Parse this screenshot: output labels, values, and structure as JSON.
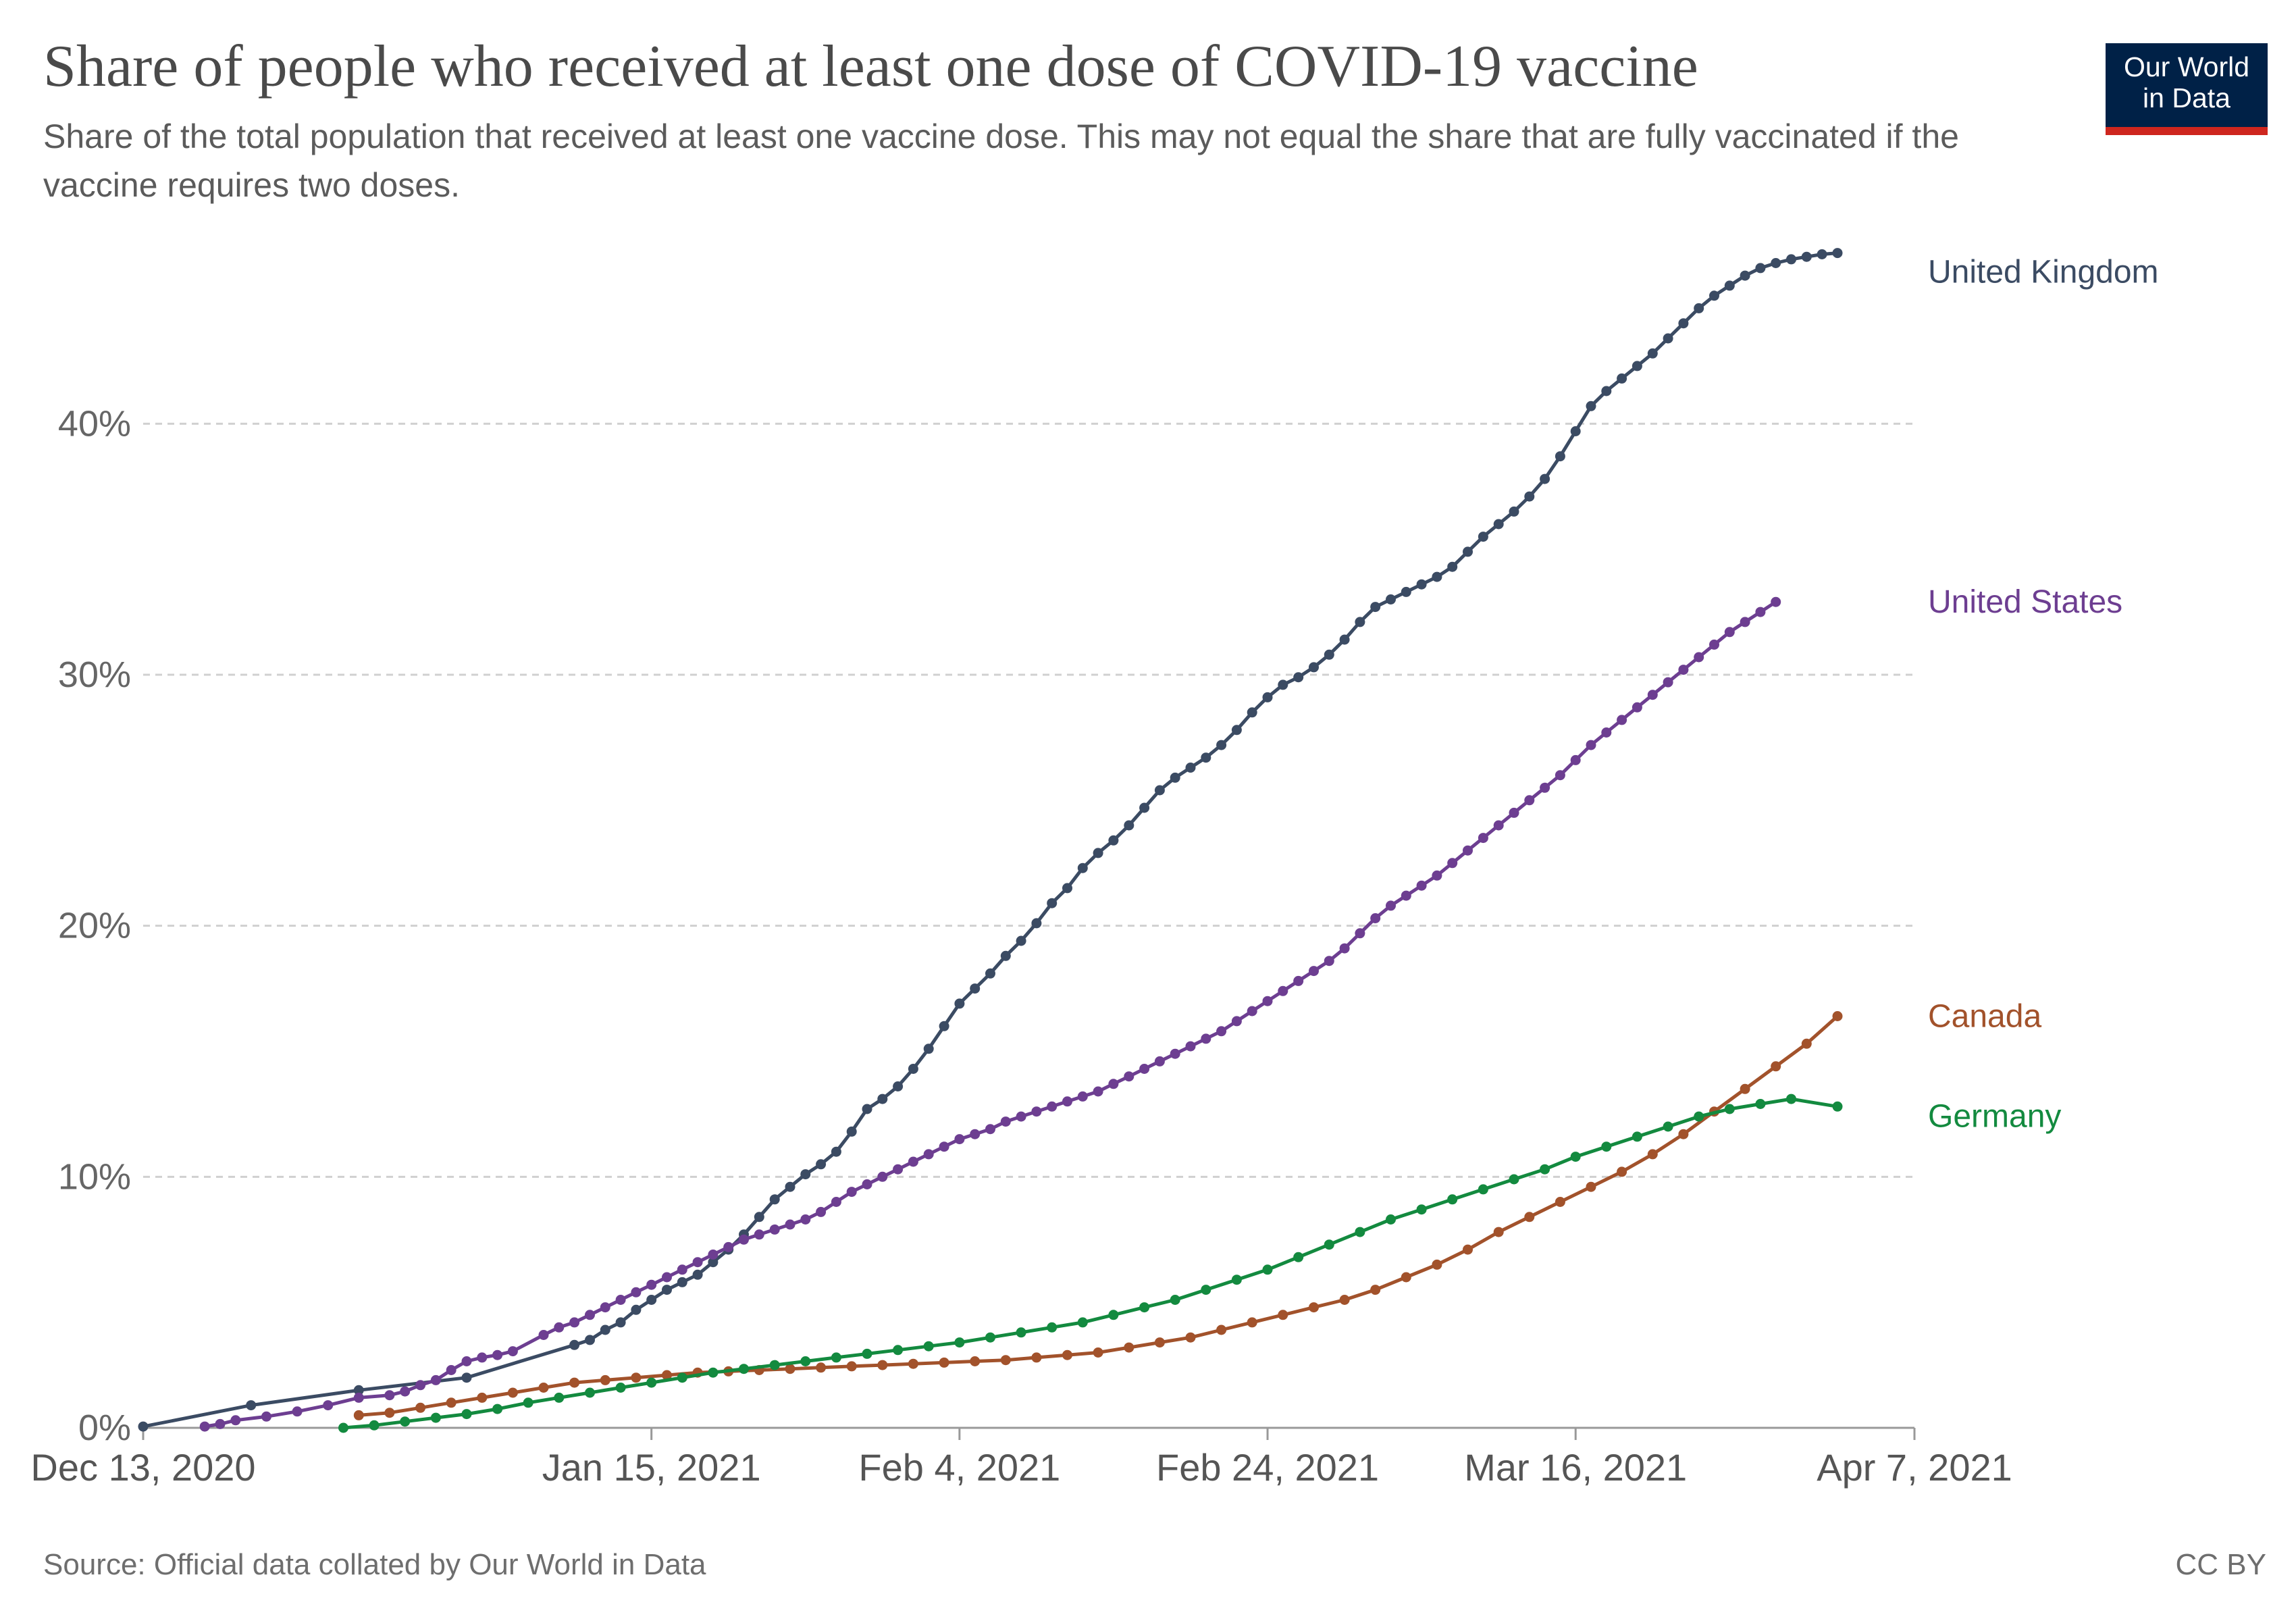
{
  "header": {
    "title": "Share of people who received at least one dose of COVID-19 vaccine",
    "subtitle": "Share of the total population that received at least one vaccine dose. This may not equal the share that are fully vaccinated if the vaccine requires two doses."
  },
  "logo": {
    "line1": "Our World",
    "line2": "in Data",
    "bg_color": "#002147",
    "accent_color": "#ce261e"
  },
  "footer": {
    "source": "Source: Official data collated by Our World in Data",
    "license": "CC BY"
  },
  "chart_data": {
    "type": "line",
    "title": "Share of people who received at least one dose of COVID-19 vaccine",
    "x_start": "Dec 13, 2020",
    "x_end": "Apr 7, 2021",
    "x_ticks": [
      {
        "label": "Dec 13, 2020",
        "day": 0
      },
      {
        "label": "Jan 15, 2021",
        "day": 33
      },
      {
        "label": "Feb 4, 2021",
        "day": 53
      },
      {
        "label": "Feb 24, 2021",
        "day": 73
      },
      {
        "label": "Mar 16, 2021",
        "day": 93
      },
      {
        "label": "Apr 7, 2021",
        "day": 115
      }
    ],
    "y_ticks": [
      {
        "label": "0%",
        "value": 0
      },
      {
        "label": "10%",
        "value": 10
      },
      {
        "label": "20%",
        "value": 20
      },
      {
        "label": "30%",
        "value": 30
      },
      {
        "label": "40%",
        "value": 40
      }
    ],
    "ylim": [
      0,
      48
    ],
    "grid": "horizontal dashed",
    "series": [
      {
        "name": "United Kingdom",
        "color": "#3b4b63",
        "points": [
          [
            0,
            0.05
          ],
          [
            7,
            0.9
          ],
          [
            14,
            1.5
          ],
          [
            21,
            2.0
          ],
          [
            28,
            3.3
          ],
          [
            29,
            3.5
          ],
          [
            30,
            3.9
          ],
          [
            31,
            4.2
          ],
          [
            32,
            4.7
          ],
          [
            33,
            5.1
          ],
          [
            34,
            5.5
          ],
          [
            35,
            5.8
          ],
          [
            36,
            6.1
          ],
          [
            37,
            6.6
          ],
          [
            38,
            7.1
          ],
          [
            39,
            7.7
          ],
          [
            40,
            8.4
          ],
          [
            41,
            9.1
          ],
          [
            42,
            9.6
          ],
          [
            43,
            10.1
          ],
          [
            44,
            10.5
          ],
          [
            45,
            11.0
          ],
          [
            46,
            11.8
          ],
          [
            47,
            12.7
          ],
          [
            48,
            13.1
          ],
          [
            49,
            13.6
          ],
          [
            50,
            14.3
          ],
          [
            51,
            15.1
          ],
          [
            52,
            16.0
          ],
          [
            53,
            16.9
          ],
          [
            54,
            17.5
          ],
          [
            55,
            18.1
          ],
          [
            56,
            18.8
          ],
          [
            57,
            19.4
          ],
          [
            58,
            20.1
          ],
          [
            59,
            20.9
          ],
          [
            60,
            21.5
          ],
          [
            61,
            22.3
          ],
          [
            62,
            22.9
          ],
          [
            63,
            23.4
          ],
          [
            64,
            24.0
          ],
          [
            65,
            24.7
          ],
          [
            66,
            25.4
          ],
          [
            67,
            25.9
          ],
          [
            68,
            26.3
          ],
          [
            69,
            26.7
          ],
          [
            70,
            27.2
          ],
          [
            71,
            27.8
          ],
          [
            72,
            28.5
          ],
          [
            73,
            29.1
          ],
          [
            74,
            29.6
          ],
          [
            75,
            29.9
          ],
          [
            76,
            30.3
          ],
          [
            77,
            30.8
          ],
          [
            78,
            31.4
          ],
          [
            79,
            32.1
          ],
          [
            80,
            32.7
          ],
          [
            81,
            33.0
          ],
          [
            82,
            33.3
          ],
          [
            83,
            33.6
          ],
          [
            84,
            33.9
          ],
          [
            85,
            34.3
          ],
          [
            86,
            34.9
          ],
          [
            87,
            35.5
          ],
          [
            88,
            36.0
          ],
          [
            89,
            36.5
          ],
          [
            90,
            37.1
          ],
          [
            91,
            37.8
          ],
          [
            92,
            38.7
          ],
          [
            93,
            39.7
          ],
          [
            94,
            40.7
          ],
          [
            95,
            41.3
          ],
          [
            96,
            41.8
          ],
          [
            97,
            42.3
          ],
          [
            98,
            42.8
          ],
          [
            99,
            43.4
          ],
          [
            100,
            44.0
          ],
          [
            101,
            44.6
          ],
          [
            102,
            45.1
          ],
          [
            103,
            45.5
          ],
          [
            104,
            45.9
          ],
          [
            105,
            46.2
          ],
          [
            106,
            46.4
          ],
          [
            107,
            46.55
          ],
          [
            108,
            46.65
          ],
          [
            109,
            46.75
          ],
          [
            110,
            46.8
          ]
        ]
      },
      {
        "name": "United States",
        "color": "#6d3e91",
        "points": [
          [
            4,
            0.05
          ],
          [
            5,
            0.15
          ],
          [
            6,
            0.3
          ],
          [
            8,
            0.45
          ],
          [
            10,
            0.65
          ],
          [
            12,
            0.9
          ],
          [
            14,
            1.2
          ],
          [
            16,
            1.3
          ],
          [
            17,
            1.45
          ],
          [
            18,
            1.7
          ],
          [
            19,
            1.9
          ],
          [
            20,
            2.3
          ],
          [
            21,
            2.65
          ],
          [
            22,
            2.8
          ],
          [
            23,
            2.9
          ],
          [
            24,
            3.05
          ],
          [
            26,
            3.7
          ],
          [
            27,
            4.0
          ],
          [
            28,
            4.2
          ],
          [
            29,
            4.5
          ],
          [
            30,
            4.8
          ],
          [
            31,
            5.1
          ],
          [
            32,
            5.4
          ],
          [
            33,
            5.7
          ],
          [
            34,
            6.0
          ],
          [
            35,
            6.3
          ],
          [
            36,
            6.6
          ],
          [
            37,
            6.9
          ],
          [
            38,
            7.2
          ],
          [
            39,
            7.5
          ],
          [
            40,
            7.7
          ],
          [
            41,
            7.9
          ],
          [
            42,
            8.1
          ],
          [
            43,
            8.3
          ],
          [
            44,
            8.6
          ],
          [
            45,
            9.0
          ],
          [
            46,
            9.4
          ],
          [
            47,
            9.7
          ],
          [
            48,
            10.0
          ],
          [
            49,
            10.3
          ],
          [
            50,
            10.6
          ],
          [
            51,
            10.9
          ],
          [
            52,
            11.2
          ],
          [
            53,
            11.5
          ],
          [
            54,
            11.7
          ],
          [
            55,
            11.9
          ],
          [
            56,
            12.2
          ],
          [
            57,
            12.4
          ],
          [
            58,
            12.6
          ],
          [
            59,
            12.8
          ],
          [
            60,
            13.0
          ],
          [
            61,
            13.2
          ],
          [
            62,
            13.4
          ],
          [
            63,
            13.7
          ],
          [
            64,
            14.0
          ],
          [
            65,
            14.3
          ],
          [
            66,
            14.6
          ],
          [
            67,
            14.9
          ],
          [
            68,
            15.2
          ],
          [
            69,
            15.5
          ],
          [
            70,
            15.8
          ],
          [
            71,
            16.2
          ],
          [
            72,
            16.6
          ],
          [
            73,
            17.0
          ],
          [
            74,
            17.4
          ],
          [
            75,
            17.8
          ],
          [
            76,
            18.2
          ],
          [
            77,
            18.6
          ],
          [
            78,
            19.1
          ],
          [
            79,
            19.7
          ],
          [
            80,
            20.3
          ],
          [
            81,
            20.8
          ],
          [
            82,
            21.2
          ],
          [
            83,
            21.6
          ],
          [
            84,
            22.0
          ],
          [
            85,
            22.5
          ],
          [
            86,
            23.0
          ],
          [
            87,
            23.5
          ],
          [
            88,
            24.0
          ],
          [
            89,
            24.5
          ],
          [
            90,
            25.0
          ],
          [
            91,
            25.5
          ],
          [
            92,
            26.0
          ],
          [
            93,
            26.6
          ],
          [
            94,
            27.2
          ],
          [
            95,
            27.7
          ],
          [
            96,
            28.2
          ],
          [
            97,
            28.7
          ],
          [
            98,
            29.2
          ],
          [
            99,
            29.7
          ],
          [
            100,
            30.2
          ],
          [
            101,
            30.7
          ],
          [
            102,
            31.2
          ],
          [
            103,
            31.7
          ],
          [
            104,
            32.1
          ],
          [
            105,
            32.5
          ],
          [
            106,
            32.9
          ]
        ]
      },
      {
        "name": "Canada",
        "color": "#a2522b",
        "points": [
          [
            14,
            0.5
          ],
          [
            16,
            0.6
          ],
          [
            18,
            0.8
          ],
          [
            20,
            1.0
          ],
          [
            22,
            1.2
          ],
          [
            24,
            1.4
          ],
          [
            26,
            1.6
          ],
          [
            28,
            1.8
          ],
          [
            30,
            1.9
          ],
          [
            32,
            2.0
          ],
          [
            34,
            2.1
          ],
          [
            36,
            2.2
          ],
          [
            38,
            2.25
          ],
          [
            40,
            2.3
          ],
          [
            42,
            2.35
          ],
          [
            44,
            2.4
          ],
          [
            46,
            2.45
          ],
          [
            48,
            2.5
          ],
          [
            50,
            2.55
          ],
          [
            52,
            2.6
          ],
          [
            54,
            2.65
          ],
          [
            56,
            2.7
          ],
          [
            58,
            2.8
          ],
          [
            60,
            2.9
          ],
          [
            62,
            3.0
          ],
          [
            64,
            3.2
          ],
          [
            66,
            3.4
          ],
          [
            68,
            3.6
          ],
          [
            70,
            3.9
          ],
          [
            72,
            4.2
          ],
          [
            74,
            4.5
          ],
          [
            76,
            4.8
          ],
          [
            78,
            5.1
          ],
          [
            80,
            5.5
          ],
          [
            82,
            6.0
          ],
          [
            84,
            6.5
          ],
          [
            86,
            7.1
          ],
          [
            88,
            7.8
          ],
          [
            90,
            8.4
          ],
          [
            92,
            9.0
          ],
          [
            94,
            9.6
          ],
          [
            96,
            10.2
          ],
          [
            98,
            10.9
          ],
          [
            100,
            11.7
          ],
          [
            102,
            12.6
          ],
          [
            104,
            13.5
          ],
          [
            106,
            14.4
          ],
          [
            108,
            15.3
          ],
          [
            110,
            16.4
          ]
        ]
      },
      {
        "name": "Germany",
        "color": "#138a3f",
        "points": [
          [
            13,
            0.0
          ],
          [
            15,
            0.1
          ],
          [
            17,
            0.25
          ],
          [
            19,
            0.4
          ],
          [
            21,
            0.55
          ],
          [
            23,
            0.75
          ],
          [
            25,
            1.0
          ],
          [
            27,
            1.2
          ],
          [
            29,
            1.4
          ],
          [
            31,
            1.6
          ],
          [
            33,
            1.8
          ],
          [
            35,
            2.0
          ],
          [
            37,
            2.2
          ],
          [
            39,
            2.35
          ],
          [
            41,
            2.5
          ],
          [
            43,
            2.65
          ],
          [
            45,
            2.8
          ],
          [
            47,
            2.95
          ],
          [
            49,
            3.1
          ],
          [
            51,
            3.25
          ],
          [
            53,
            3.4
          ],
          [
            55,
            3.6
          ],
          [
            57,
            3.8
          ],
          [
            59,
            4.0
          ],
          [
            61,
            4.2
          ],
          [
            63,
            4.5
          ],
          [
            65,
            4.8
          ],
          [
            67,
            5.1
          ],
          [
            69,
            5.5
          ],
          [
            71,
            5.9
          ],
          [
            73,
            6.3
          ],
          [
            75,
            6.8
          ],
          [
            77,
            7.3
          ],
          [
            79,
            7.8
          ],
          [
            81,
            8.3
          ],
          [
            83,
            8.7
          ],
          [
            85,
            9.1
          ],
          [
            87,
            9.5
          ],
          [
            89,
            9.9
          ],
          [
            91,
            10.3
          ],
          [
            93,
            10.8
          ],
          [
            95,
            11.2
          ],
          [
            97,
            11.6
          ],
          [
            99,
            12.0
          ],
          [
            101,
            12.4
          ],
          [
            103,
            12.7
          ],
          [
            105,
            12.9
          ],
          [
            107,
            13.1
          ],
          [
            110,
            12.8
          ]
        ]
      }
    ]
  }
}
